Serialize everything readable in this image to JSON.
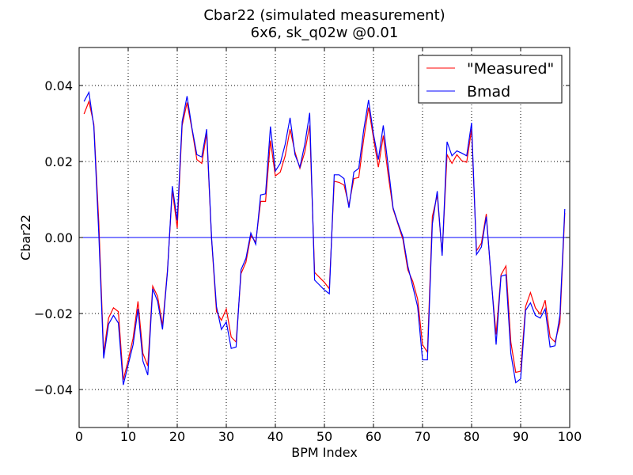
{
  "chart_data": {
    "type": "line",
    "title": "Cbar22 (simulated measurement)",
    "subtitle": "6x6, sk_q02w @0.01",
    "xlabel": "BPM Index",
    "ylabel": "Cbar22",
    "xlim": [
      0,
      100
    ],
    "ylim": [
      -0.05,
      0.05
    ],
    "xticks": [
      0,
      10,
      20,
      30,
      40,
      50,
      60,
      70,
      80,
      90,
      100
    ],
    "yticks": [
      -0.04,
      -0.02,
      0.0,
      0.02,
      0.04
    ],
    "ytick_labels": [
      "−0.04",
      "−0.02",
      "0.00",
      "0.02",
      "0.04"
    ],
    "xtick_labels": [
      "0",
      "10",
      "20",
      "30",
      "40",
      "50",
      "60",
      "70",
      "80",
      "90",
      "100"
    ],
    "grid": true,
    "legend_position": "top-right",
    "hline": 0.0,
    "hline_color": "#0000ff",
    "x": [
      1,
      2,
      3,
      4,
      5,
      6,
      7,
      8,
      9,
      10,
      11,
      12,
      13,
      14,
      15,
      16,
      17,
      18,
      19,
      20,
      21,
      22,
      23,
      24,
      25,
      26,
      27,
      28,
      29,
      30,
      31,
      32,
      33,
      34,
      35,
      36,
      37,
      38,
      39,
      40,
      41,
      42,
      43,
      44,
      45,
      46,
      47,
      48,
      49,
      50,
      51,
      52,
      53,
      54,
      55,
      56,
      57,
      58,
      59,
      60,
      61,
      62,
      63,
      64,
      65,
      66,
      67,
      68,
      69,
      70,
      71,
      72,
      73,
      74,
      75,
      76,
      77,
      78,
      79,
      80,
      81,
      82,
      83,
      84,
      85,
      86,
      87,
      88,
      89,
      90,
      91,
      92,
      93,
      94,
      95,
      96,
      97,
      98,
      99
    ],
    "series": [
      {
        "name": "\"Measured\"",
        "color": "#ff0000",
        "values": [
          0.0325,
          0.0358,
          0.0298,
          0.0042,
          -0.0305,
          -0.0212,
          -0.0185,
          -0.0195,
          -0.0375,
          -0.0323,
          -0.0265,
          -0.0168,
          -0.0305,
          -0.0338,
          -0.0128,
          -0.0155,
          -0.0232,
          -0.0088,
          0.0125,
          0.0025,
          0.0295,
          0.0355,
          0.0285,
          0.0205,
          0.0195,
          0.0275,
          -0.0005,
          -0.0195,
          -0.0218,
          -0.0188,
          -0.0262,
          -0.0275,
          -0.0095,
          -0.0065,
          0.0005,
          -0.0012,
          0.0095,
          0.0095,
          0.0255,
          0.0162,
          0.0172,
          0.0215,
          0.0285,
          0.0225,
          0.0182,
          0.0225,
          0.0295,
          -0.0092,
          -0.0105,
          -0.0118,
          -0.0135,
          0.0148,
          0.0145,
          0.0138,
          0.0085,
          0.0155,
          0.0158,
          0.0258,
          0.0342,
          0.0262,
          0.0185,
          0.0268,
          0.0165,
          0.0075,
          0.0035,
          -0.0005,
          -0.0085,
          -0.0115,
          -0.0162,
          -0.0282,
          -0.0302,
          0.0055,
          0.0112,
          -0.0045,
          0.0218,
          0.0195,
          0.0218,
          0.0202,
          0.0198,
          0.0285,
          -0.0035,
          -0.0015,
          0.0062,
          -0.0112,
          -0.0255,
          -0.0098,
          -0.0075,
          -0.0275,
          -0.0355,
          -0.0352,
          -0.0182,
          -0.0145,
          -0.0185,
          -0.0202,
          -0.0165,
          -0.0262,
          -0.0275,
          -0.0225,
          0.0065
        ]
      },
      {
        "name": "Bmad",
        "color": "#0000ff",
        "values": [
          0.0358,
          0.0382,
          0.0292,
          0.0012,
          -0.0318,
          -0.0228,
          -0.0205,
          -0.0225,
          -0.0388,
          -0.0335,
          -0.0282,
          -0.0188,
          -0.0325,
          -0.0362,
          -0.0135,
          -0.0168,
          -0.0242,
          -0.0092,
          0.0135,
          0.0045,
          0.0305,
          0.0372,
          0.0288,
          0.0218,
          0.0212,
          0.0285,
          -0.0002,
          -0.0182,
          -0.0242,
          -0.0222,
          -0.0292,
          -0.0288,
          -0.0085,
          -0.0055,
          0.0012,
          -0.0018,
          0.0112,
          0.0115,
          0.0292,
          0.0175,
          0.0195,
          0.0245,
          0.0315,
          0.0218,
          0.0185,
          0.0245,
          0.0328,
          -0.0112,
          -0.0125,
          -0.0138,
          -0.0148,
          0.0165,
          0.0165,
          0.0155,
          0.0078,
          0.0172,
          0.0182,
          0.0282,
          0.0362,
          0.0272,
          0.0205,
          0.0295,
          0.0188,
          0.0078,
          0.0038,
          0.0002,
          -0.0075,
          -0.0128,
          -0.0182,
          -0.0322,
          -0.0322,
          0.0035,
          0.0122,
          -0.0048,
          0.0252,
          0.0215,
          0.0228,
          0.0222,
          0.0215,
          0.0302,
          -0.0045,
          -0.0025,
          0.0055,
          -0.0105,
          -0.0282,
          -0.0102,
          -0.0098,
          -0.0305,
          -0.0382,
          -0.0372,
          -0.0192,
          -0.0172,
          -0.0205,
          -0.0212,
          -0.0188,
          -0.0288,
          -0.0285,
          -0.0205,
          0.0075
        ]
      }
    ]
  }
}
